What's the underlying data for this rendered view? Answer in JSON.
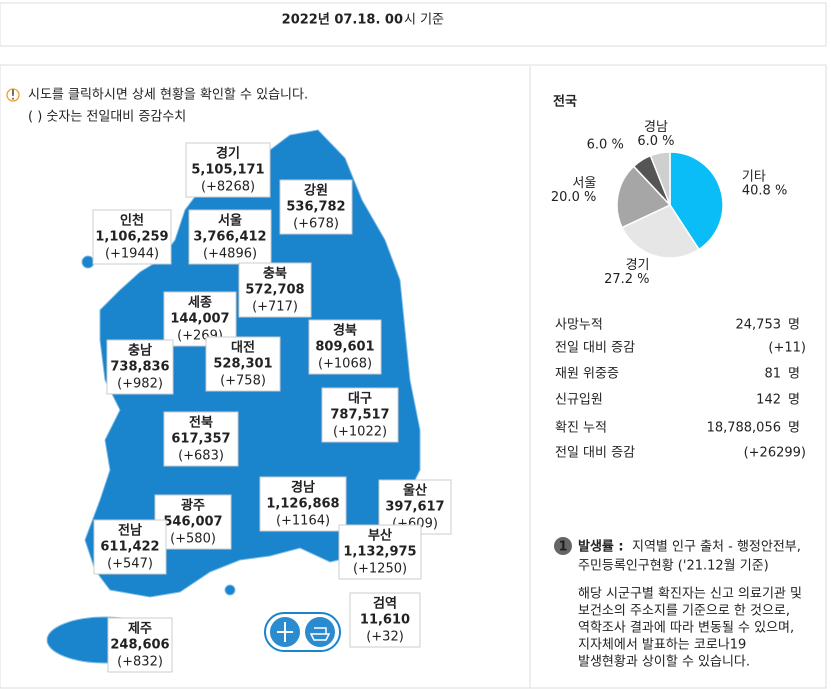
{
  "header": {
    "date_bold": "2022년 07.18. 00",
    "date_rest": "시 기준"
  },
  "notice": {
    "lines": [
      "시도를 클릭하시면 상세 현황을 확인할 수 있습니다.",
      "( ) 숫자는 전일대비 증감수치"
    ]
  },
  "regions": [
    {
      "name": "경기",
      "total": "5,105,171",
      "change": "(+8268)"
    },
    {
      "name": "강원",
      "total": "536,782",
      "change": "(+678)"
    },
    {
      "name": "인천",
      "total": "1,106,259",
      "change": "(+1944)"
    },
    {
      "name": "서울",
      "total": "3,766,412",
      "change": "(+4896)"
    },
    {
      "name": "충북",
      "total": "572,708",
      "change": "(+717)"
    },
    {
      "name": "세종",
      "total": "144,007",
      "change": "(+269)"
    },
    {
      "name": "경북",
      "total": "809,601",
      "change": "(+1068)"
    },
    {
      "name": "충남",
      "total": "738,836",
      "change": "(+982)"
    },
    {
      "name": "대전",
      "total": "528,301",
      "change": "(+758)"
    },
    {
      "name": "대구",
      "total": "787,517",
      "change": "(+1022)"
    },
    {
      "name": "전북",
      "total": "617,357",
      "change": "(+683)"
    },
    {
      "name": "경남",
      "total": "1,126,868",
      "change": "(+1164)"
    },
    {
      "name": "울산",
      "total": "397,617",
      "change": "(+609)"
    },
    {
      "name": "광주",
      "total": "546,007",
      "change": "(+580)"
    },
    {
      "name": "전남",
      "total": "611,422",
      "change": "(+547)"
    },
    {
      "name": "부산",
      "total": "1,132,975",
      "change": "(+1250)"
    },
    {
      "name": "검역",
      "total": "11,610",
      "change": "(+32)"
    },
    {
      "name": "제주",
      "total": "248,606",
      "change": "(+832)"
    }
  ],
  "panel": {
    "title": "전국"
  },
  "chart_data": {
    "type": "pie",
    "categories": [
      "기타",
      "경기",
      "서울",
      null,
      "경남"
    ],
    "values": [
      40.8,
      27.2,
      20.0,
      6.0,
      6.0
    ],
    "value_labels": [
      "40.8 %",
      "27.2 %",
      "20.0 %",
      "6.0 %",
      "6.0 %"
    ],
    "colors": [
      "#0abdf7",
      "#e6e6e6",
      "#a6a6a6",
      "#555555",
      "#cfcfcf"
    ]
  },
  "stats": [
    {
      "label": "사망누적",
      "value": "24,753",
      "unit": "명"
    },
    {
      "label": "전일 대비 증감",
      "value": "(+11)"
    },
    {
      "label": "재원 위중증",
      "value": "81",
      "unit": "명"
    },
    {
      "label": "신규입원",
      "value": "142",
      "unit": "명"
    },
    {
      "label": "확진 누적",
      "value": "18,788,056",
      "unit": "명"
    },
    {
      "label": "전일 대비 증감",
      "value": "(+26299)"
    }
  ],
  "footnote": {
    "number": "1",
    "term": "발생률 :",
    "source_lines": [
      "지역별 인구 출처 - 행정안전부,",
      "주민등록인구현황 ('21.12월 기준)"
    ],
    "note_lines": [
      "해당 시군구별 확진자는 신고 의료기관 및",
      "보건소의 주소지를 기준으로 한 것으로,",
      "역학조사 결과에 따라 변동될 수 있으며,",
      "지자체에서 발표하는 코로나19",
      "발생현황과 상이할 수 있습니다."
    ]
  }
}
